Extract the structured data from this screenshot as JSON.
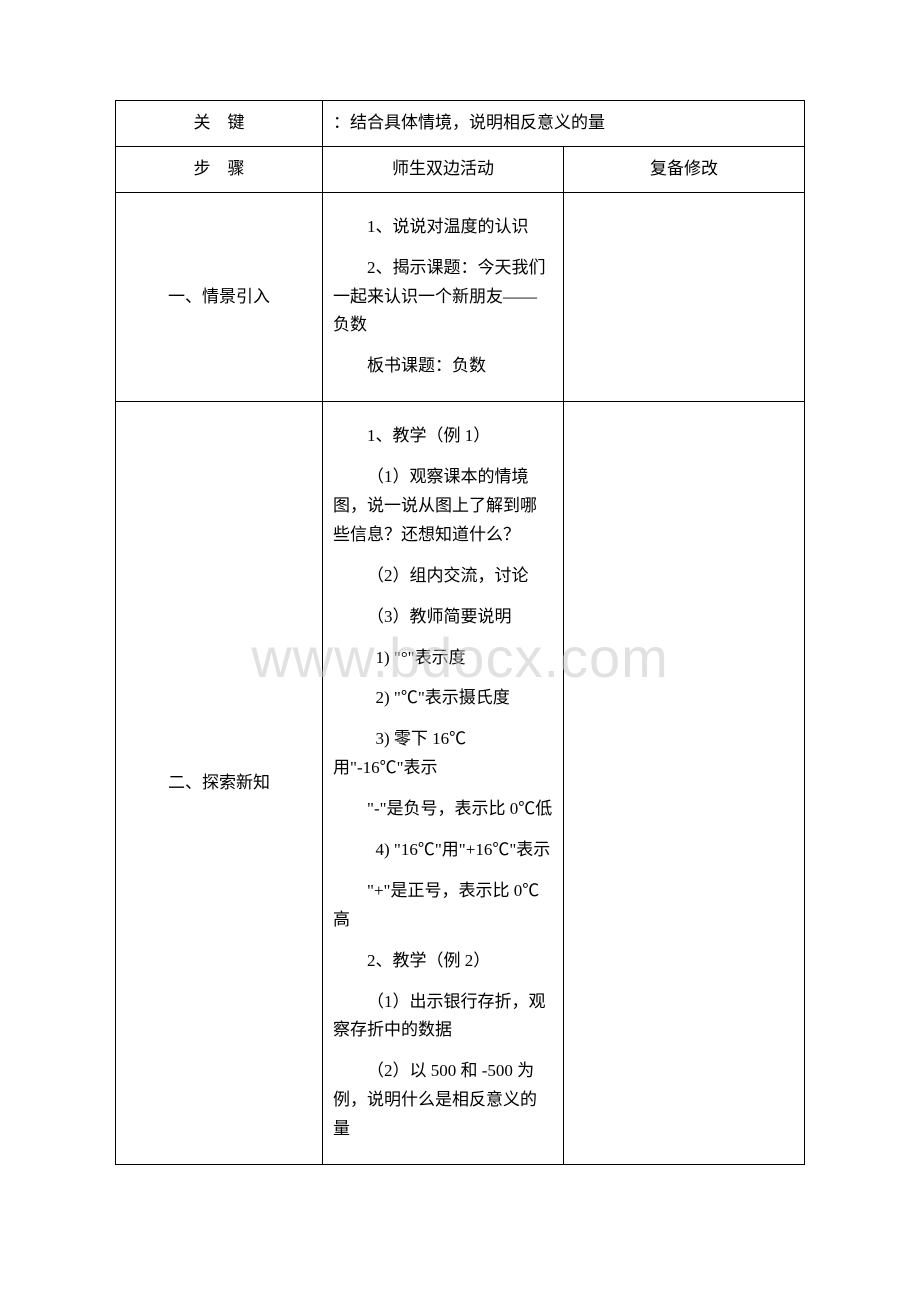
{
  "watermark": "www.bdocx.com",
  "rows": {
    "key": {
      "label": "关　键",
      "content": "：结合具体情境，说明相反意义的量"
    },
    "steps": {
      "label": "步　骤",
      "activity_header": "师生双边活动",
      "revise_header": "复备修改"
    },
    "scene": {
      "label": "一、情景引入",
      "activities": [
        {
          "cls": "indent",
          "text": "1、说说对温度的认识"
        },
        {
          "cls": "indent",
          "text": "2、揭示课题：今天我们一起来认识一个新朋友——负数"
        },
        {
          "cls": "indent",
          "text": "板书课题：负数"
        }
      ]
    },
    "explore": {
      "label": "二、探索新知",
      "activities": [
        {
          "cls": "indent",
          "text": "1、教学（例 1）"
        },
        {
          "cls": "indent",
          "text": "（1）观察课本的情境图，说一说从图上了解到哪些信息？还想知道什么？"
        },
        {
          "cls": "indent",
          "text": "（2）组内交流，讨论"
        },
        {
          "cls": "indent",
          "text": "（3）教师简要说明"
        },
        {
          "cls": "indent-sub",
          "text": "1) \"°\"表示度"
        },
        {
          "cls": "indent-sub",
          "text": "2) \"℃\"表示摄氏度"
        },
        {
          "cls": "indent-sub",
          "text": "3) 零下 16℃用\"-16℃\"表示"
        },
        {
          "cls": "indent",
          "text": "\"-\"是负号，表示比 0℃低"
        },
        {
          "cls": "indent-sub",
          "text": "4) \"16℃\"用\"+16℃\"表示"
        },
        {
          "cls": "indent",
          "text": "\"+\"是正号，表示比 0℃高"
        },
        {
          "cls": "indent",
          "text": "2、教学（例 2）"
        },
        {
          "cls": "indent",
          "text": "（1）出示银行存折，观察存折中的数据"
        },
        {
          "cls": "indent",
          "text": "（2）以 500 和 -500 为例，说明什么是相反意义的量"
        }
      ]
    }
  }
}
